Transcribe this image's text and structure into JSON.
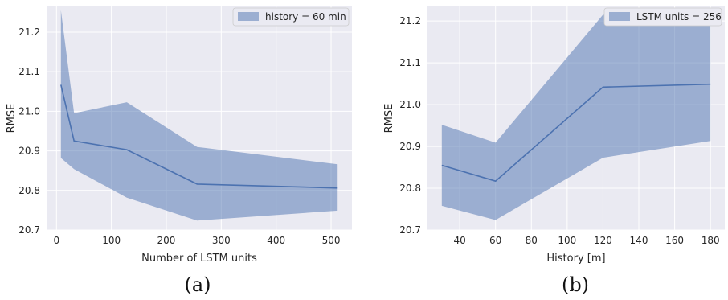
{
  "colors": {
    "plot_bg": "#eaeaf2",
    "grid": "#ffffff",
    "line": "#4c72b0",
    "band": "#4c72b0"
  },
  "chart_data": [
    {
      "type": "line",
      "caption": "(a)",
      "xlabel": "Number of LSTM units",
      "ylabel": "RMSE",
      "xlim": [
        -18,
        538
      ],
      "ylim": [
        20.7,
        21.265
      ],
      "xticks": [
        0,
        100,
        200,
        300,
        400,
        500
      ],
      "xticklabels": [
        "0",
        "100",
        "200",
        "300",
        "400",
        "500"
      ],
      "yticks": [
        20.7,
        20.8,
        20.9,
        21.0,
        21.1,
        21.2
      ],
      "yticklabels": [
        "20.7",
        "20.8",
        "20.9",
        "21.0",
        "21.1",
        "21.2"
      ],
      "grid": true,
      "legend_position": "top-right",
      "series": [
        {
          "name": "history = 60 min",
          "x": [
            8,
            32,
            128,
            256,
            512
          ],
          "values": [
            21.067,
            20.925,
            20.903,
            20.816,
            20.806
          ],
          "lower": [
            20.882,
            20.854,
            20.782,
            20.724,
            20.749
          ],
          "upper": [
            21.255,
            20.995,
            21.023,
            20.91,
            20.866
          ]
        }
      ]
    },
    {
      "type": "line",
      "caption": "(b)",
      "xlabel": "History [m]",
      "ylabel": "RMSE",
      "xlim": [
        22,
        188
      ],
      "ylim": [
        20.7,
        21.235
      ],
      "xticks": [
        40,
        60,
        80,
        100,
        120,
        140,
        160,
        180
      ],
      "xticklabels": [
        "40",
        "60",
        "80",
        "100",
        "120",
        "140",
        "160",
        "180"
      ],
      "yticks": [
        20.7,
        20.8,
        20.9,
        21.0,
        21.1,
        21.2
      ],
      "yticklabels": [
        "20.7",
        "20.8",
        "20.9",
        "21.0",
        "21.1",
        "21.2"
      ],
      "grid": true,
      "legend_position": "top-right",
      "series": [
        {
          "name": "LSTM units = 256",
          "x": [
            30,
            60,
            120,
            180
          ],
          "values": [
            20.855,
            20.817,
            21.042,
            21.049
          ],
          "lower": [
            20.758,
            20.724,
            20.873,
            20.913
          ],
          "upper": [
            20.952,
            20.909,
            21.215,
            21.2
          ]
        }
      ]
    }
  ]
}
